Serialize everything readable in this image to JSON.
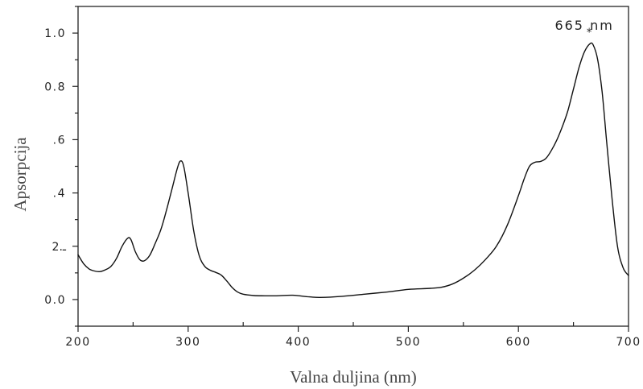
{
  "chart_data": {
    "type": "line",
    "xlabel": "Valna duljina (nm)",
    "ylabel": "Apsorpcija",
    "xlim": [
      200,
      700
    ],
    "ylim": [
      -0.1,
      1.1
    ],
    "x_ticks": [
      200,
      300,
      400,
      500,
      600,
      700
    ],
    "x_tick_labels": [
      "200",
      "300",
      "400",
      "500",
      "600",
      "700"
    ],
    "y_ticks": [
      0.0,
      0.2,
      0.4,
      0.6,
      0.8,
      1.0
    ],
    "y_tick_labels": [
      "0.0",
      "ـ.2",
      ".4",
      ".6",
      "0.8",
      "1.0"
    ],
    "grid": false,
    "line_color": "#111111",
    "annotation": {
      "text": "665 nm",
      "marker": "*",
      "x": 665,
      "y": 0.96
    },
    "series": [
      {
        "x": [
          200,
          205,
          210,
          215,
          220,
          225,
          230,
          235,
          240,
          245,
          248,
          252,
          256,
          260,
          265,
          270,
          275,
          280,
          285,
          290,
          293,
          296,
          300,
          305,
          310,
          315,
          320,
          325,
          330,
          335,
          340,
          345,
          350,
          360,
          370,
          380,
          395,
          410,
          420,
          440,
          460,
          480,
          500,
          520,
          530,
          540,
          550,
          560,
          570,
          580,
          590,
          600,
          605,
          610,
          615,
          620,
          625,
          630,
          635,
          640,
          645,
          650,
          655,
          660,
          665,
          668,
          672,
          676,
          680,
          685,
          690,
          695,
          700
        ],
        "y": [
          0.168,
          0.135,
          0.115,
          0.107,
          0.105,
          0.112,
          0.125,
          0.155,
          0.2,
          0.23,
          0.225,
          0.18,
          0.15,
          0.145,
          0.165,
          0.21,
          0.26,
          0.33,
          0.41,
          0.49,
          0.52,
          0.5,
          0.4,
          0.26,
          0.165,
          0.125,
          0.11,
          0.102,
          0.092,
          0.07,
          0.045,
          0.028,
          0.02,
          0.015,
          0.014,
          0.014,
          0.016,
          0.01,
          0.008,
          0.012,
          0.02,
          0.028,
          0.038,
          0.042,
          0.046,
          0.058,
          0.08,
          0.11,
          0.15,
          0.2,
          0.28,
          0.39,
          0.45,
          0.5,
          0.515,
          0.518,
          0.53,
          0.56,
          0.6,
          0.65,
          0.71,
          0.79,
          0.87,
          0.93,
          0.96,
          0.955,
          0.9,
          0.78,
          0.6,
          0.38,
          0.2,
          0.12,
          0.09
        ]
      }
    ]
  }
}
